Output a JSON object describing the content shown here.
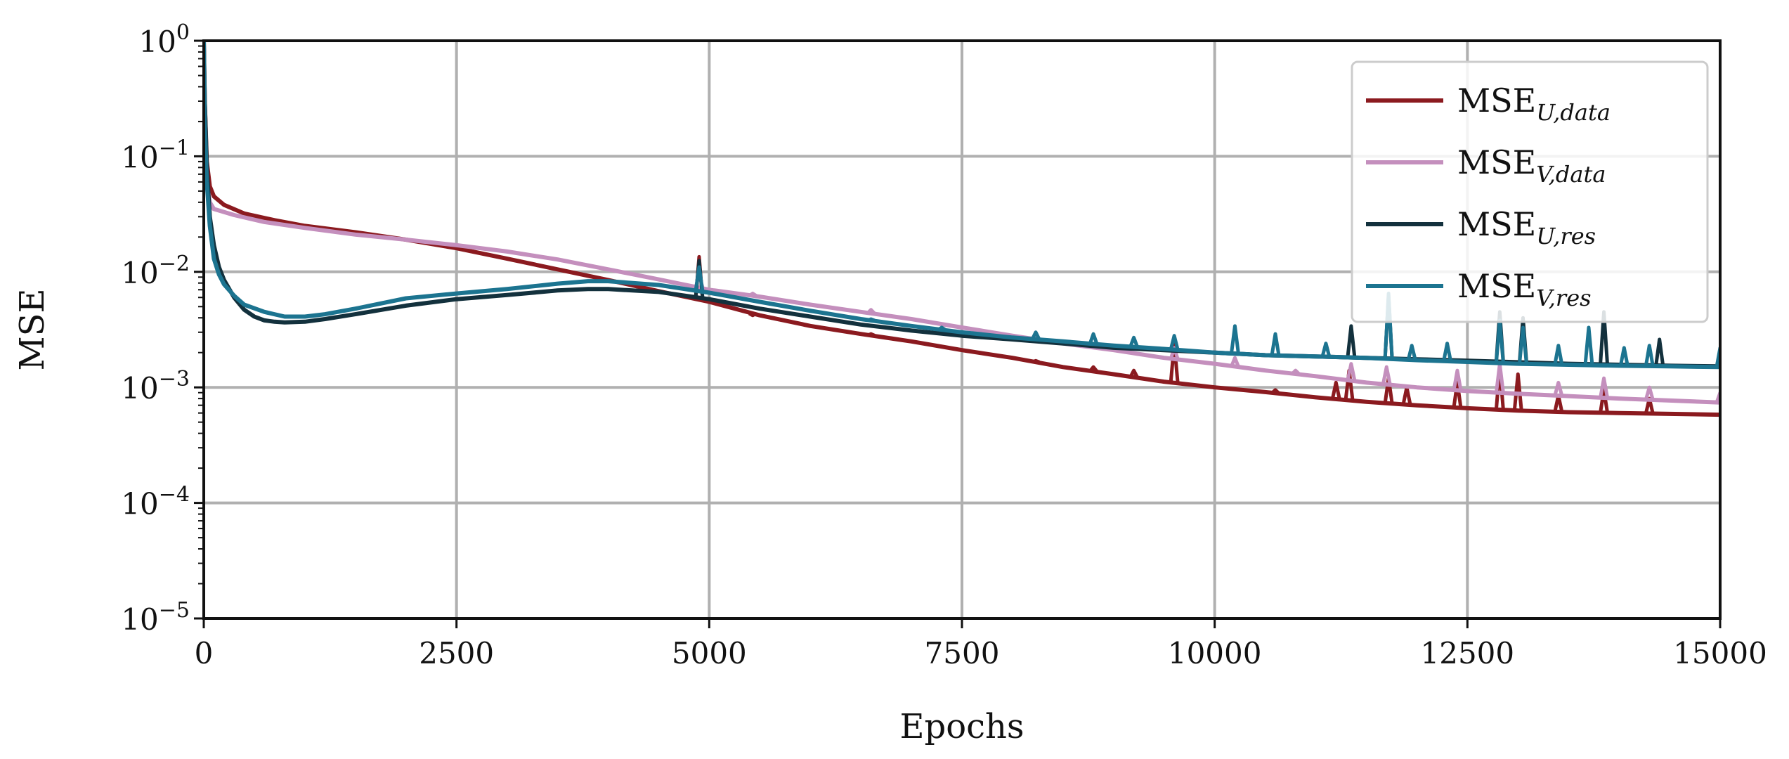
{
  "chart_data": {
    "type": "line",
    "title": "",
    "xlabel": "Epochs",
    "ylabel": "MSE",
    "xlim": [
      0,
      15000
    ],
    "ylim": [
      1e-05,
      1
    ],
    "yscale": "log",
    "grid": true,
    "legend_position": "top-right",
    "x_ticks": [
      0,
      2500,
      5000,
      7500,
      10000,
      12500,
      15000
    ],
    "x_tick_labels": [
      "0",
      "2500",
      "5000",
      "7500",
      "10000",
      "12500",
      "15000"
    ],
    "y_ticks": [
      1,
      0.1,
      0.01,
      0.001,
      0.0001,
      1e-05
    ],
    "y_tick_labels": [
      {
        "base": "10",
        "exp": "0"
      },
      {
        "base": "10",
        "exp": "−1"
      },
      {
        "base": "10",
        "exp": "−2"
      },
      {
        "base": "10",
        "exp": "−3"
      },
      {
        "base": "10",
        "exp": "−4"
      },
      {
        "base": "10",
        "exp": "−5"
      }
    ],
    "series": [
      {
        "name": {
          "main": "MSE",
          "sub": "U,data"
        },
        "color": "#8b1a1f",
        "points": [
          [
            0,
            1.0
          ],
          [
            10,
            0.3
          ],
          [
            30,
            0.09
          ],
          [
            60,
            0.055
          ],
          [
            100,
            0.045
          ],
          [
            200,
            0.038
          ],
          [
            400,
            0.032
          ],
          [
            700,
            0.028
          ],
          [
            1000,
            0.025
          ],
          [
            1500,
            0.022
          ],
          [
            2000,
            0.019
          ],
          [
            2500,
            0.016
          ],
          [
            3000,
            0.013
          ],
          [
            3500,
            0.0105
          ],
          [
            4000,
            0.0085
          ],
          [
            4500,
            0.0068
          ],
          [
            5000,
            0.0055
          ],
          [
            5500,
            0.0042
          ],
          [
            6000,
            0.0034
          ],
          [
            6500,
            0.0029
          ],
          [
            7000,
            0.0025
          ],
          [
            7500,
            0.0021
          ],
          [
            8000,
            0.0018
          ],
          [
            8500,
            0.0015
          ],
          [
            9000,
            0.0013
          ],
          [
            9500,
            0.00112
          ],
          [
            10000,
            0.001
          ],
          [
            10500,
            0.00091
          ],
          [
            11000,
            0.00082
          ],
          [
            11500,
            0.00075
          ],
          [
            12000,
            0.0007
          ],
          [
            12500,
            0.00066
          ],
          [
            13000,
            0.00063
          ],
          [
            13500,
            0.00061
          ],
          [
            14000,
            0.0006
          ],
          [
            14500,
            0.00059
          ],
          [
            15000,
            0.00058
          ]
        ],
        "spikes": [
          [
            4900,
            0.0135
          ],
          [
            5430,
            0.0042
          ],
          [
            6600,
            0.0029
          ],
          [
            8230,
            0.0017
          ],
          [
            8800,
            0.0015
          ],
          [
            9200,
            0.0014
          ],
          [
            9600,
            0.0024
          ],
          [
            10600,
            0.00095
          ],
          [
            11200,
            0.0011
          ],
          [
            11330,
            0.0014
          ],
          [
            11720,
            0.0012
          ],
          [
            11900,
            0.001
          ],
          [
            12400,
            0.0011
          ],
          [
            12820,
            0.0015
          ],
          [
            13000,
            0.0013
          ],
          [
            13400,
            0.00085
          ],
          [
            13850,
            0.00095
          ],
          [
            14300,
            0.0008
          ]
        ]
      },
      {
        "name": {
          "main": "MSE",
          "sub": "V,data"
        },
        "color": "#c48fbd",
        "points": [
          [
            0,
            1.0
          ],
          [
            10,
            0.2
          ],
          [
            30,
            0.06
          ],
          [
            60,
            0.04
          ],
          [
            100,
            0.035
          ],
          [
            300,
            0.031
          ],
          [
            600,
            0.027
          ],
          [
            1000,
            0.024
          ],
          [
            1500,
            0.021
          ],
          [
            2000,
            0.019
          ],
          [
            2500,
            0.017
          ],
          [
            3000,
            0.015
          ],
          [
            3500,
            0.0128
          ],
          [
            4000,
            0.0105
          ],
          [
            4500,
            0.0086
          ],
          [
            5000,
            0.007
          ],
          [
            5500,
            0.0061
          ],
          [
            6000,
            0.0052
          ],
          [
            6500,
            0.0045
          ],
          [
            7000,
            0.0039
          ],
          [
            7500,
            0.0033
          ],
          [
            8000,
            0.0028
          ],
          [
            8500,
            0.0024
          ],
          [
            9000,
            0.0021
          ],
          [
            9500,
            0.0018
          ],
          [
            10000,
            0.0016
          ],
          [
            10500,
            0.0014
          ],
          [
            11000,
            0.00125
          ],
          [
            11500,
            0.0011
          ],
          [
            12000,
            0.001
          ],
          [
            12500,
            0.00093
          ],
          [
            13000,
            0.00088
          ],
          [
            13500,
            0.00084
          ],
          [
            14000,
            0.0008
          ],
          [
            14500,
            0.00077
          ],
          [
            15000,
            0.00074
          ]
        ],
        "spikes": [
          [
            4900,
            0.0095
          ],
          [
            5430,
            0.0065
          ],
          [
            6600,
            0.0047
          ],
          [
            8230,
            0.0028
          ],
          [
            9600,
            0.0022
          ],
          [
            10200,
            0.0018
          ],
          [
            10800,
            0.0014
          ],
          [
            11350,
            0.0016
          ],
          [
            11700,
            0.0015
          ],
          [
            12400,
            0.0014
          ],
          [
            12820,
            0.0016
          ],
          [
            13400,
            0.0011
          ],
          [
            13850,
            0.0012
          ],
          [
            14300,
            0.001
          ],
          [
            15000,
            0.0009
          ]
        ]
      },
      {
        "name": {
          "main": "MSE",
          "sub": "U,res"
        },
        "color": "#13313d",
        "points": [
          [
            0,
            1.0
          ],
          [
            10,
            0.3
          ],
          [
            30,
            0.08
          ],
          [
            60,
            0.03
          ],
          [
            100,
            0.017
          ],
          [
            150,
            0.011
          ],
          [
            200,
            0.0085
          ],
          [
            300,
            0.006
          ],
          [
            400,
            0.0047
          ],
          [
            500,
            0.0041
          ],
          [
            600,
            0.0038
          ],
          [
            700,
            0.0037
          ],
          [
            800,
            0.00365
          ],
          [
            1000,
            0.0037
          ],
          [
            1200,
            0.0039
          ],
          [
            1500,
            0.0043
          ],
          [
            2000,
            0.0051
          ],
          [
            2500,
            0.0058
          ],
          [
            3000,
            0.0063
          ],
          [
            3500,
            0.0069
          ],
          [
            3800,
            0.0071
          ],
          [
            4000,
            0.0071
          ],
          [
            4500,
            0.0067
          ],
          [
            5000,
            0.0058
          ],
          [
            5500,
            0.0048
          ],
          [
            6000,
            0.0041
          ],
          [
            6500,
            0.0035
          ],
          [
            7000,
            0.0031
          ],
          [
            7500,
            0.0028
          ],
          [
            8000,
            0.0026
          ],
          [
            8500,
            0.0024
          ],
          [
            9000,
            0.0022
          ],
          [
            9500,
            0.0021
          ],
          [
            10000,
            0.002
          ],
          [
            10500,
            0.0019
          ],
          [
            11000,
            0.00185
          ],
          [
            11500,
            0.0018
          ],
          [
            12000,
            0.00175
          ],
          [
            12500,
            0.0017
          ],
          [
            13000,
            0.00165
          ],
          [
            13500,
            0.0016
          ],
          [
            14000,
            0.00157
          ],
          [
            14500,
            0.00154
          ],
          [
            15000,
            0.00152
          ]
        ],
        "spikes": [
          [
            4900,
            0.0125
          ],
          [
            11350,
            0.0034
          ],
          [
            11720,
            0.0062
          ],
          [
            12820,
            0.0045
          ],
          [
            13050,
            0.004
          ],
          [
            13850,
            0.0045
          ],
          [
            14400,
            0.0026
          ]
        ]
      },
      {
        "name": {
          "main": "MSE",
          "sub": "V,res"
        },
        "color": "#1c7490",
        "points": [
          [
            0,
            1.0
          ],
          [
            10,
            0.2
          ],
          [
            30,
            0.06
          ],
          [
            60,
            0.025
          ],
          [
            100,
            0.013
          ],
          [
            150,
            0.0095
          ],
          [
            200,
            0.0078
          ],
          [
            300,
            0.0062
          ],
          [
            400,
            0.0052
          ],
          [
            600,
            0.0045
          ],
          [
            800,
            0.0041
          ],
          [
            1000,
            0.0041
          ],
          [
            1200,
            0.0043
          ],
          [
            1500,
            0.0048
          ],
          [
            2000,
            0.0059
          ],
          [
            2500,
            0.0065
          ],
          [
            3000,
            0.0071
          ],
          [
            3500,
            0.0079
          ],
          [
            3800,
            0.0083
          ],
          [
            4000,
            0.0083
          ],
          [
            4500,
            0.0077
          ],
          [
            5000,
            0.0066
          ],
          [
            5500,
            0.0055
          ],
          [
            6000,
            0.0046
          ],
          [
            6500,
            0.0039
          ],
          [
            7000,
            0.0034
          ],
          [
            7500,
            0.003
          ],
          [
            8000,
            0.0027
          ],
          [
            8500,
            0.0025
          ],
          [
            9000,
            0.0023
          ],
          [
            9500,
            0.00215
          ],
          [
            10000,
            0.002
          ],
          [
            10500,
            0.0019
          ],
          [
            11000,
            0.00185
          ],
          [
            11500,
            0.0018
          ],
          [
            12000,
            0.00172
          ],
          [
            12500,
            0.00166
          ],
          [
            13000,
            0.0016
          ],
          [
            13500,
            0.00157
          ],
          [
            14000,
            0.00154
          ],
          [
            14500,
            0.00152
          ],
          [
            15000,
            0.0015
          ]
        ],
        "spikes": [
          [
            4900,
            0.011
          ],
          [
            6600,
            0.0039
          ],
          [
            7300,
            0.0033
          ],
          [
            8230,
            0.003
          ],
          [
            8800,
            0.0029
          ],
          [
            9200,
            0.0027
          ],
          [
            9600,
            0.0028
          ],
          [
            10200,
            0.0034
          ],
          [
            10600,
            0.0029
          ],
          [
            11100,
            0.0024
          ],
          [
            11720,
            0.0065
          ],
          [
            11950,
            0.0023
          ],
          [
            12300,
            0.0024
          ],
          [
            12820,
            0.0038
          ],
          [
            13050,
            0.0033
          ],
          [
            13400,
            0.0023
          ],
          [
            13700,
            0.0033
          ],
          [
            14050,
            0.0022
          ],
          [
            14300,
            0.0023
          ],
          [
            15000,
            0.0022
          ]
        ]
      }
    ]
  }
}
